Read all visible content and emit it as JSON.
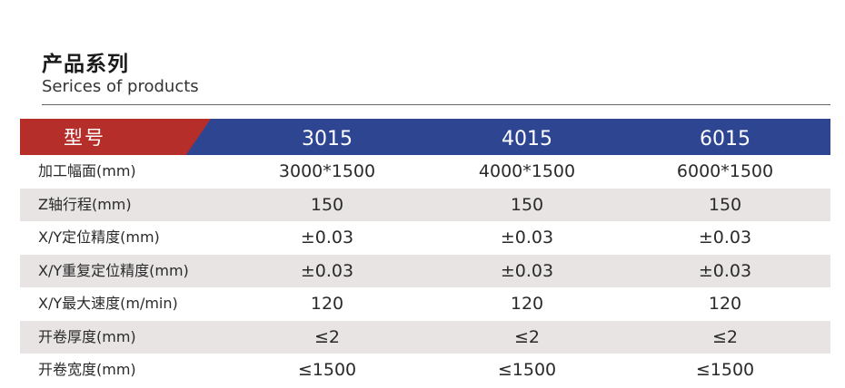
{
  "heading": {
    "title_cn": "产品系列",
    "title_en": "Serices of products"
  },
  "table": {
    "header": {
      "label": "型号",
      "models": [
        "3015",
        "4015",
        "6015"
      ]
    },
    "rows": [
      {
        "label": "加工幅面(mm)",
        "values": [
          "3000*1500",
          "4000*1500",
          "6000*1500"
        ]
      },
      {
        "label": "Z轴行程(mm)",
        "values": [
          "150",
          "150",
          "150"
        ]
      },
      {
        "label": "X/Y定位精度(mm)",
        "values": [
          "±0.03",
          "±0.03",
          "±0.03"
        ]
      },
      {
        "label": "X/Y重复定位精度(mm)",
        "values": [
          "±0.03",
          "±0.03",
          "±0.03"
        ]
      },
      {
        "label": "X/Y最大速度(m/min)",
        "values": [
          "120",
          "120",
          "120"
        ]
      },
      {
        "label": "开卷厚度(mm)",
        "values": [
          "≤2",
          "≤2",
          "≤2"
        ]
      },
      {
        "label": "开卷宽度(mm)",
        "values": [
          "≤1500",
          "≤1500",
          "≤1500"
        ]
      }
    ]
  },
  "colors": {
    "header_blue": "#2e4592",
    "header_red": "#b52e29",
    "row_shade": "#e8e4e4"
  }
}
